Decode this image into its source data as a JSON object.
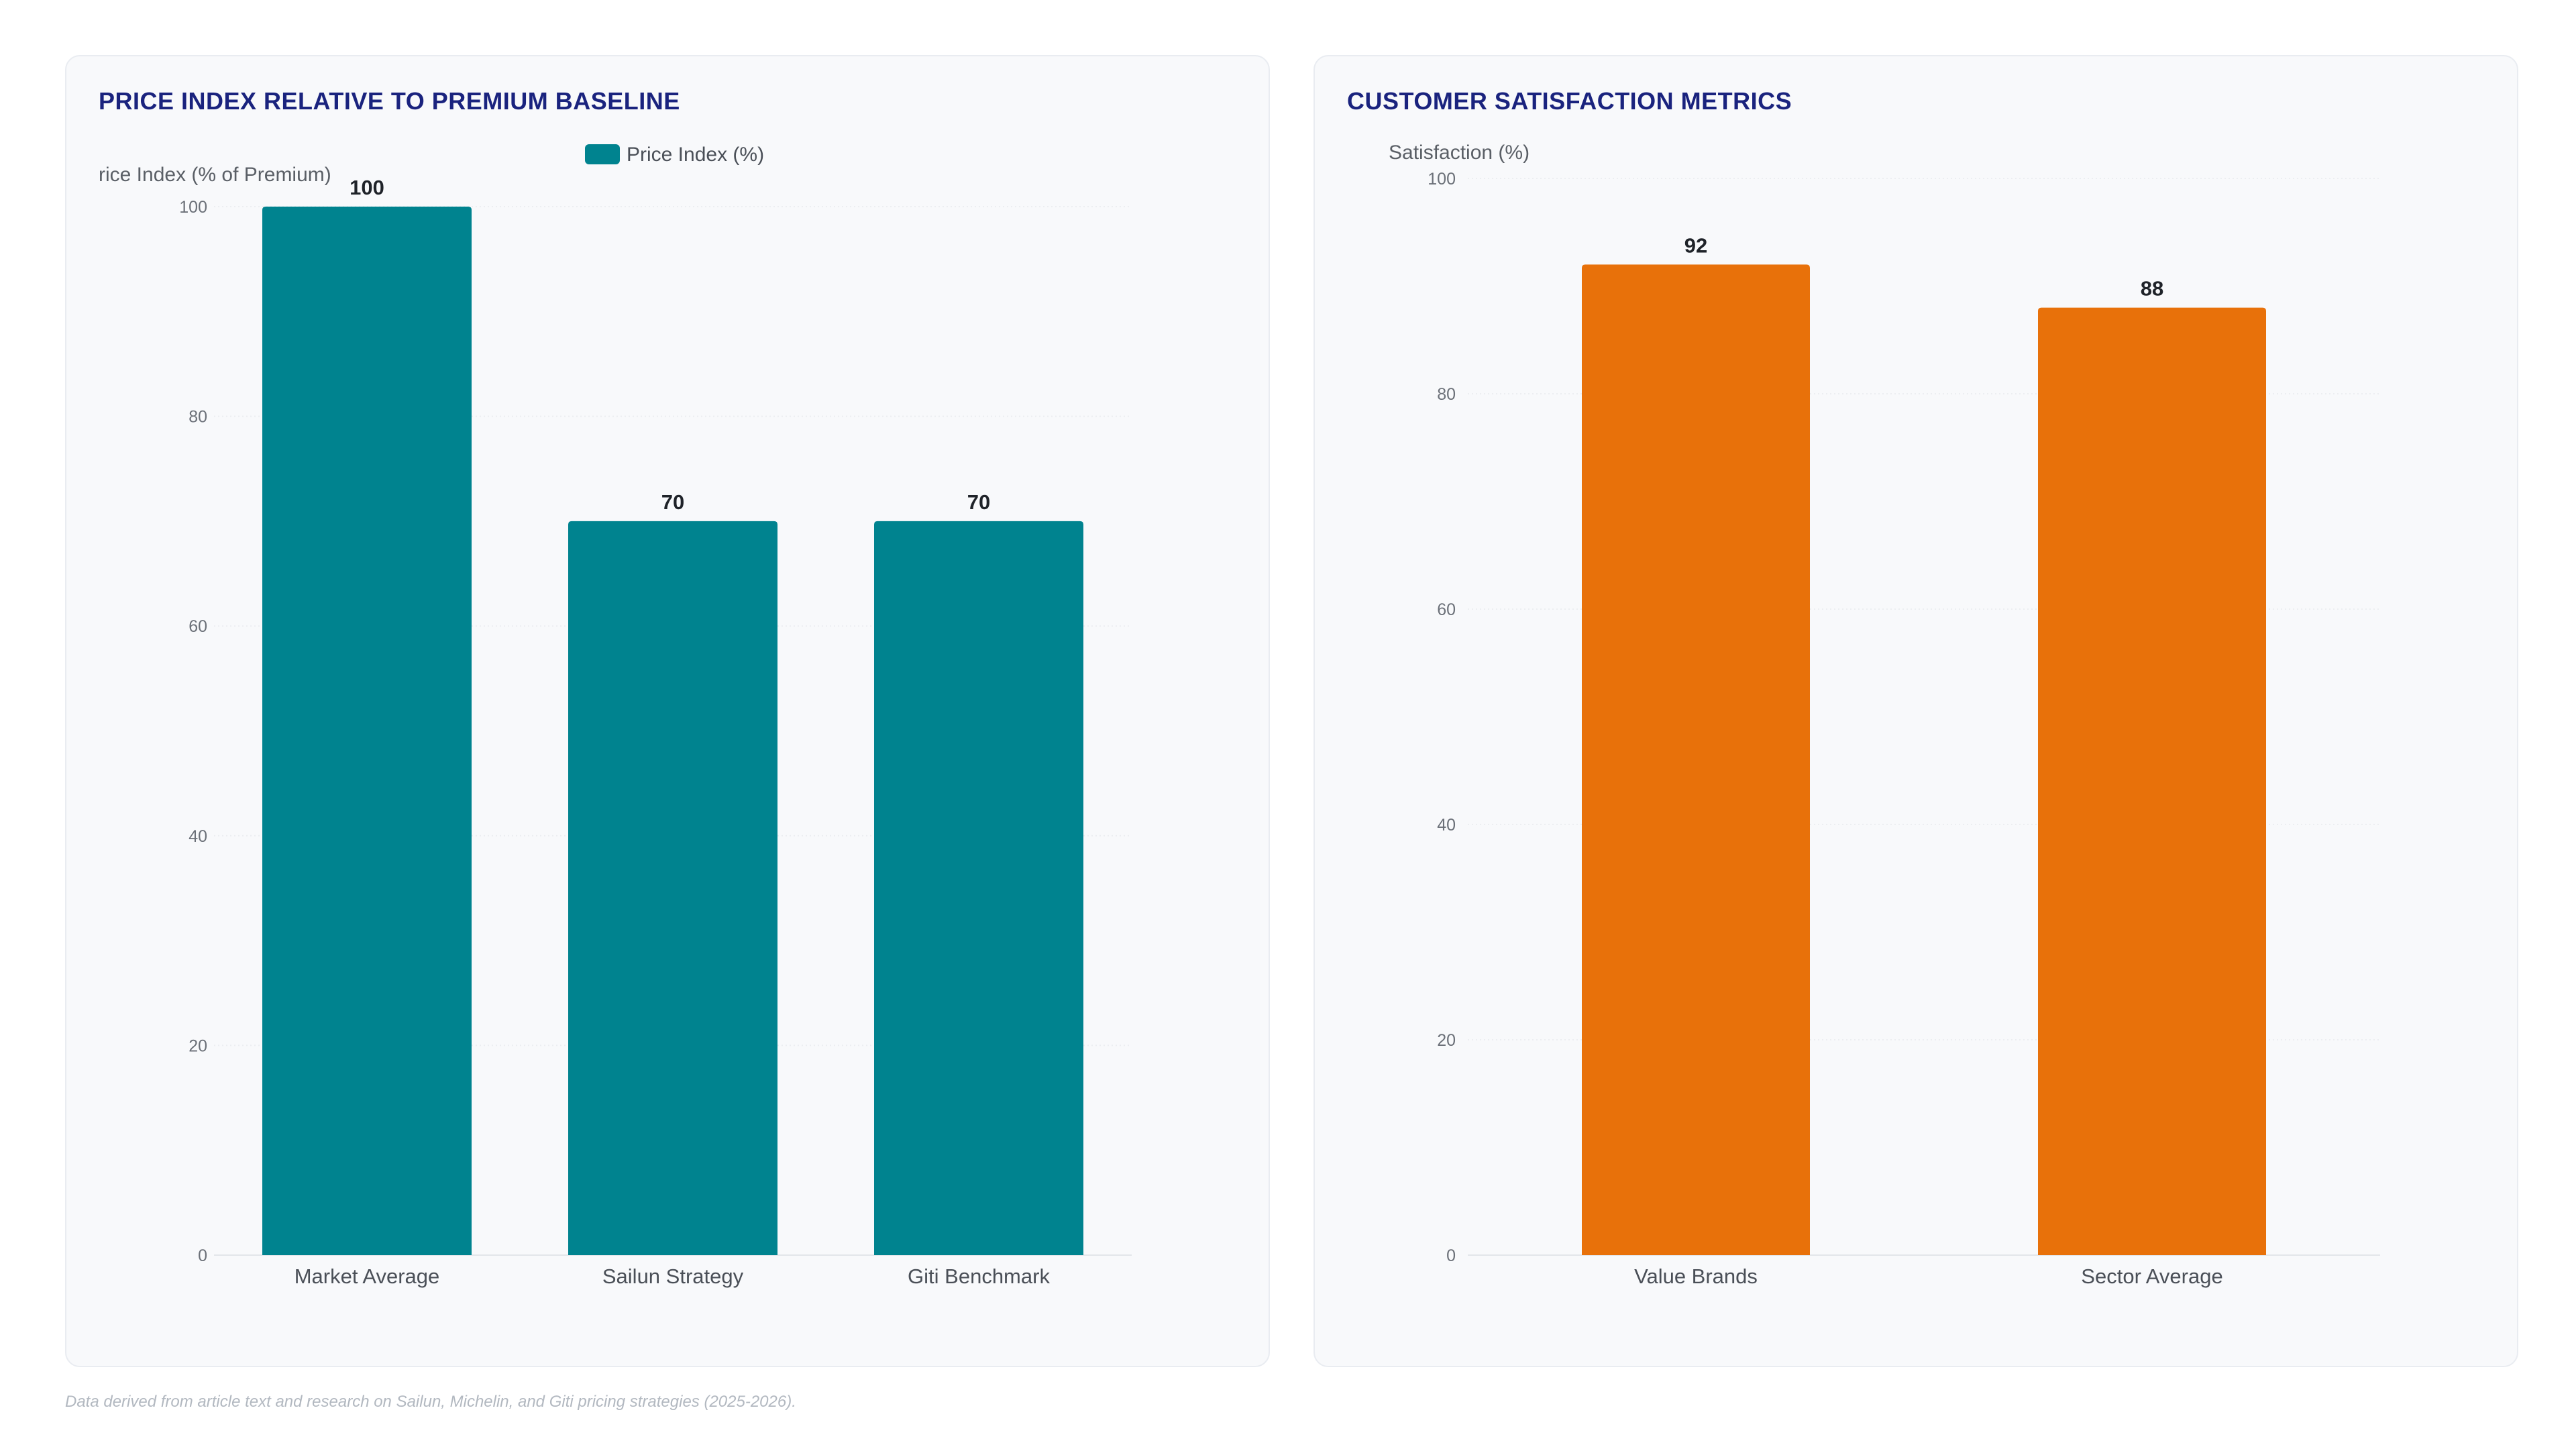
{
  "chart_data": [
    {
      "type": "bar",
      "title": "PRICE INDEX RELATIVE TO PREMIUM BASELINE",
      "ylabel": "rice Index (% of Premium)",
      "xlabel": "",
      "ylim": [
        0,
        100
      ],
      "yticks": [
        0,
        20,
        40,
        60,
        80,
        100
      ],
      "categories": [
        "Market Average",
        "Sailun Strategy",
        "Giti Benchmark"
      ],
      "values": [
        100,
        70,
        70
      ],
      "series": [
        {
          "name": "Price Index (%)",
          "values": [
            100,
            70,
            70
          ]
        }
      ],
      "legend": "top-center",
      "grid": true,
      "color": "#00838f"
    },
    {
      "type": "bar",
      "title": "CUSTOMER SATISFACTION METRICS",
      "ylabel": "Satisfaction (%)",
      "xlabel": "",
      "ylim": [
        0,
        100
      ],
      "yticks": [
        0,
        20,
        40,
        60,
        80,
        100
      ],
      "categories": [
        "Value Brands",
        "Sector Average"
      ],
      "values": [
        92,
        88
      ],
      "grid": true,
      "color": "#e8710a"
    }
  ],
  "footnote": "Data derived from article text and research on Sailun, Michelin, and Giti pricing strategies (2025-2026)."
}
